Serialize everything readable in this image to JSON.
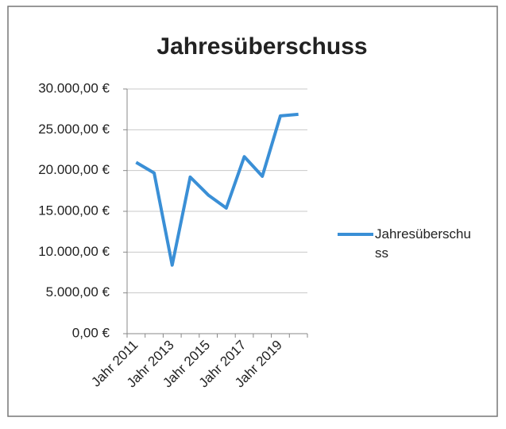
{
  "chart_data": {
    "type": "line",
    "title": "Jahresüberschuss",
    "categories": [
      "Jahr 2011",
      null,
      "Jahr 2013",
      null,
      "Jahr 2015",
      null,
      "Jahr 2017",
      null,
      "Jahr 2019",
      null
    ],
    "series": [
      {
        "name": "Jahresüberschuss",
        "color": "#3a8fd6",
        "values": [
          21000,
          19700,
          8400,
          19200,
          17000,
          15400,
          21700,
          19300,
          26700,
          26900
        ]
      }
    ],
    "ylim": [
      0,
      30000
    ],
    "yticks": [
      {
        "value": 0,
        "label": "0,00 €"
      },
      {
        "value": 5000,
        "label": "5.000,00 €"
      },
      {
        "value": 10000,
        "label": "10.000,00 €"
      },
      {
        "value": 15000,
        "label": "15.000,00 €"
      },
      {
        "value": 20000,
        "label": "20.000,00 €"
      },
      {
        "value": 25000,
        "label": "25.000,00 €"
      },
      {
        "value": 30000,
        "label": "30.000,00 €"
      }
    ],
    "grid": true,
    "legend": "right"
  }
}
